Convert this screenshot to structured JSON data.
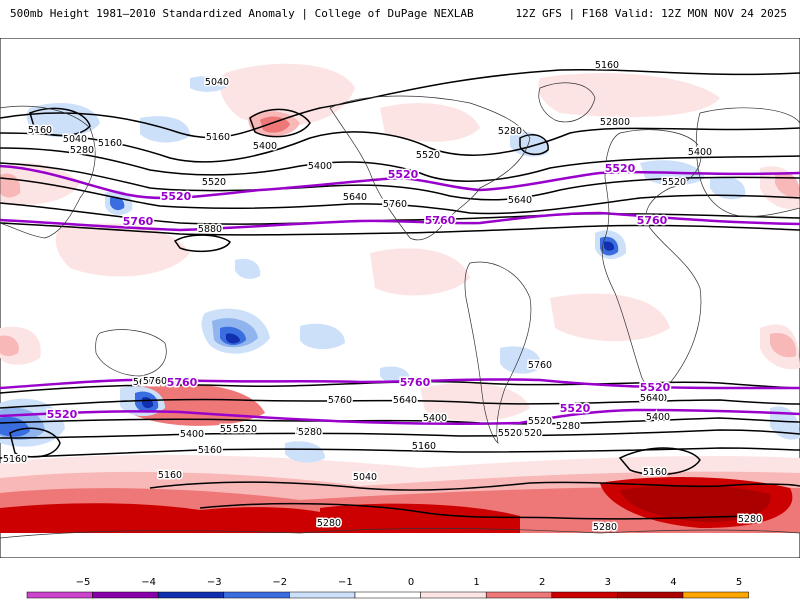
{
  "header": {
    "title_left": "500mb Height 1981–2010 Standardized Anomaly | College of DuPage NEXLAB",
    "title_right": "12Z GFS | F168 Valid: 12Z MON NOV 24 2025"
  },
  "colors": {
    "neg5": "#cc44cc",
    "neg4": "#8800aa",
    "neg3": "#1030b0",
    "neg2": "#3a6ee0",
    "neg1_5": "#8fb4ee",
    "neg1": "#cde0fa",
    "zero": "#ffffff",
    "pos1": "#fde4e4",
    "pos1_5": "#f8b8b8",
    "pos2": "#ee7777",
    "pos3": "#cc0000",
    "pos4": "#aa0000",
    "pos5": "#ffa500",
    "contour": "#000000",
    "highlight": "#9900cc"
  },
  "colorbar": {
    "ticks": [
      "−5",
      "−4",
      "−3",
      "−2",
      "−1",
      "0",
      "1",
      "2",
      "3",
      "4",
      "5"
    ]
  },
  "contour_labels": {
    "black": [
      "5040",
      "5040",
      "5160",
      "5160",
      "5280",
      "5400",
      "5520",
      "5640",
      "5760",
      "5880",
      "5280",
      "5520",
      "5400",
      "5640",
      "5160",
      "5400",
      "5520",
      "5280",
      "5400",
      "5160",
      "5040",
      "5160",
      "5280",
      "5400",
      "5520",
      "5640",
      "5760",
      "5760",
      "5640",
      "5520",
      "5640",
      "5400",
      "5520",
      "5160",
      "5280",
      "5160",
      "5280",
      "5520",
      "5640",
      "5640",
      "5400",
      "5520",
      "5280",
      "5160",
      "5280",
      "5160",
      "5280",
      "5760"
    ],
    "purple": [
      "5520",
      "5520",
      "5520",
      "5760",
      "5760",
      "5760",
      "5760",
      "5760",
      "5520",
      "5520",
      "5520"
    ]
  }
}
